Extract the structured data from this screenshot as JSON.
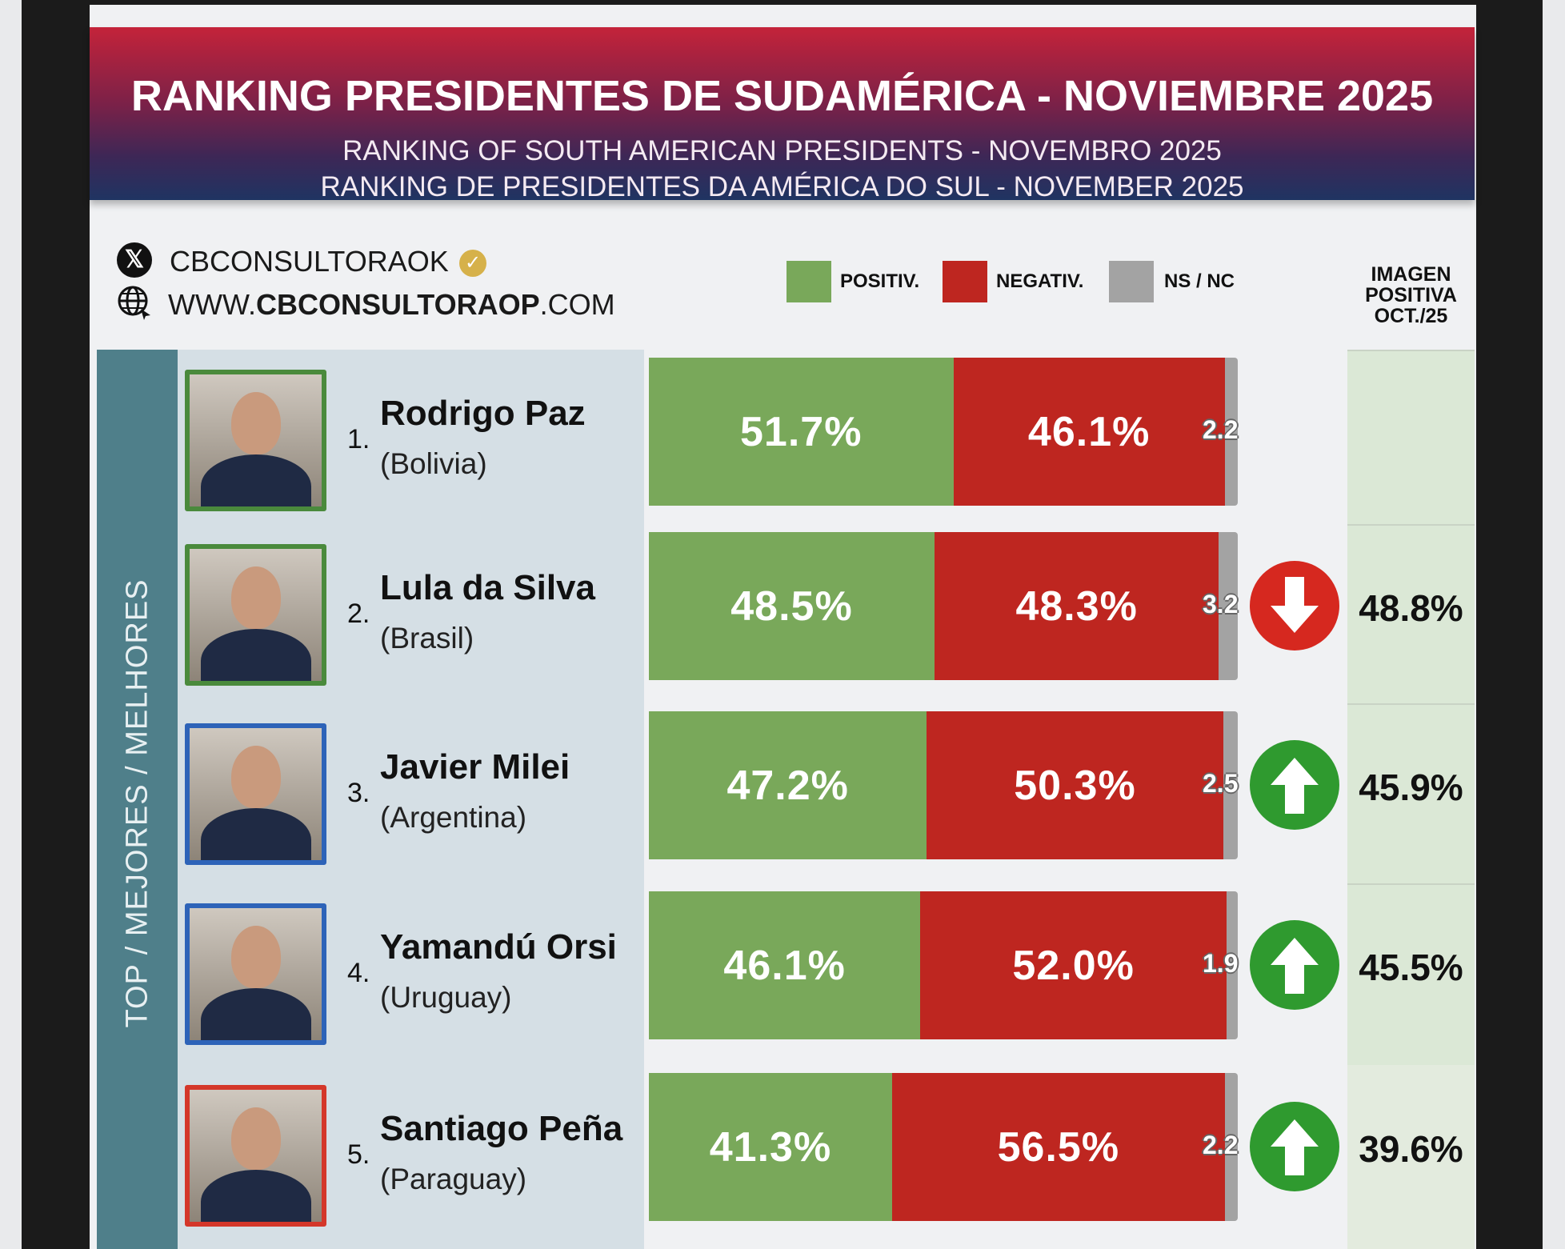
{
  "colors": {
    "positive": "#79a85a",
    "negative": "#be2620",
    "nsnc": "#a3a3a3",
    "up": "#2f9a2f",
    "down": "#d6281f",
    "border_green": "#4a8a3c",
    "border_blue": "#2d63b8",
    "border_red": "#d4372a"
  },
  "header": {
    "title": "RANKING PRESIDENTES DE SUDAMÉRICA - NOVIEMBRE 2025",
    "subtitle_1": "RANKING OF SOUTH AMERICAN PRESIDENTS -   NOVEMBRO 2025",
    "subtitle_2": "RANKING DE PRESIDENTES DA AMÉRICA DO SUL - NOVEMBER 2025"
  },
  "social": {
    "x_icon": "x-logo-icon",
    "handle": "CBCONSULTORAOK",
    "site_prefix": "WWW.",
    "site_brand": "CBCONSULTORAOP",
    "site_suffix": ".COM"
  },
  "band_label": "TOP / MEJORES / MELHORES",
  "chart_data": {
    "type": "bar",
    "stacked": true,
    "orientation": "horizontal",
    "title": "RANKING PRESIDENTES DE SUDAMÉRICA - NOVIEMBRE 2025",
    "legend": [
      {
        "key": "positive",
        "label": "POSITIV."
      },
      {
        "key": "negative",
        "label": "NEGATIV."
      },
      {
        "key": "nsnc",
        "label": "NS / NC"
      }
    ],
    "legend_position": "top",
    "xlim": [
      0,
      100
    ],
    "prev_header": [
      "IMAGEN",
      "POSITIVA",
      "OCT./25"
    ],
    "rows": [
      {
        "rank": "1.",
        "name": "Rodrigo Paz",
        "country": "(Bolivia)",
        "positive": 51.7,
        "negative": 46.1,
        "nsnc": 2.2,
        "positive_label": "51.7%",
        "negative_label": "46.1%",
        "nsnc_label": "2.2",
        "trend": null,
        "prev_label": null,
        "border": "border_green"
      },
      {
        "rank": "2.",
        "name": "Lula da Silva",
        "country": "(Brasil)",
        "positive": 48.5,
        "negative": 48.3,
        "nsnc": 3.2,
        "positive_label": "48.5%",
        "negative_label": "48.3%",
        "nsnc_label": "3.2",
        "trend": "down",
        "prev_label": "48.8%",
        "border": "border_green"
      },
      {
        "rank": "3.",
        "name": "Javier Milei",
        "country": "(Argentina)",
        "positive": 47.2,
        "negative": 50.3,
        "nsnc": 2.5,
        "positive_label": "47.2%",
        "negative_label": "50.3%",
        "nsnc_label": "2.5",
        "trend": "up",
        "prev_label": "45.9%",
        "border": "border_blue"
      },
      {
        "rank": "4.",
        "name": "Yamandú Orsi",
        "country": "(Uruguay)",
        "positive": 46.1,
        "negative": 52.0,
        "nsnc": 1.9,
        "positive_label": "46.1%",
        "negative_label": "52.0%",
        "nsnc_label": "1.9",
        "trend": "up",
        "prev_label": "45.5%",
        "border": "border_blue"
      },
      {
        "rank": "5.",
        "name": "Santiago Peña",
        "country": "(Paraguay)",
        "positive": 41.3,
        "negative": 56.5,
        "nsnc": 2.2,
        "positive_label": "41.3%",
        "negative_label": "56.5%",
        "nsnc_label": "2.2",
        "trend": "up",
        "prev_label": "39.6%",
        "border": "border_red"
      }
    ]
  }
}
